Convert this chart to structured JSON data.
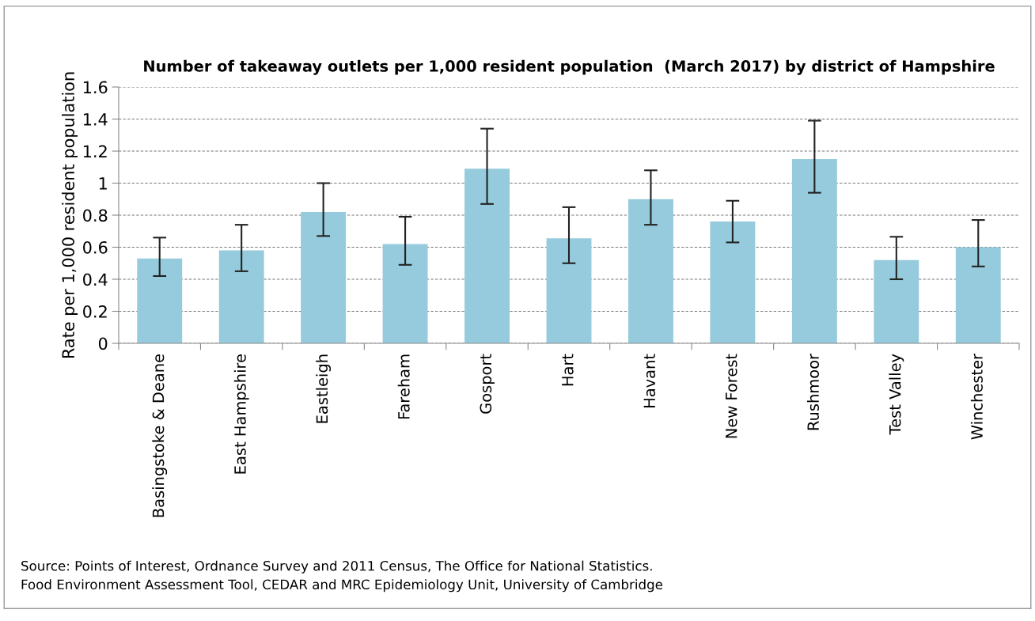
{
  "chart_data": {
    "type": "bar",
    "title": "Number of takeaway outlets per 1,000 resident population  (March 2017) by district of Hampshire",
    "ylabel": "Rate per 1,000 resident population",
    "categories": [
      "Basingstoke & Deane",
      "East Hampshire",
      "Eastleigh",
      "Fareham",
      "Gosport",
      "Hart",
      "Havant",
      "New Forest",
      "Rushmoor",
      "Test Valley",
      "Winchester"
    ],
    "values": [
      0.53,
      0.58,
      0.82,
      0.62,
      1.09,
      0.655,
      0.9,
      0.76,
      1.15,
      0.52,
      0.6
    ],
    "errors": [
      [
        0.42,
        0.66
      ],
      [
        0.45,
        0.74
      ],
      [
        0.67,
        1.0
      ],
      [
        0.49,
        0.79
      ],
      [
        0.87,
        1.34
      ],
      [
        0.5,
        0.85
      ],
      [
        0.74,
        1.08
      ],
      [
        0.63,
        0.89
      ],
      [
        0.94,
        1.39
      ],
      [
        0.4,
        0.665
      ],
      [
        0.48,
        0.77
      ]
    ],
    "color": "#95cbdc",
    "ylim": [
      0,
      1.6
    ],
    "yticks": [
      0,
      0.2,
      0.4,
      0.6,
      0.8,
      1,
      1.2,
      1.4,
      1.6
    ],
    "grid": "y",
    "annotations": [
      "Source: Points of Interest, Ordnance Survey and 2011 Census, The Office for National Statistics.",
      "Food Environment Assessment Tool, CEDAR and MRC Epidemiology Unit, University of Cambridge"
    ]
  }
}
